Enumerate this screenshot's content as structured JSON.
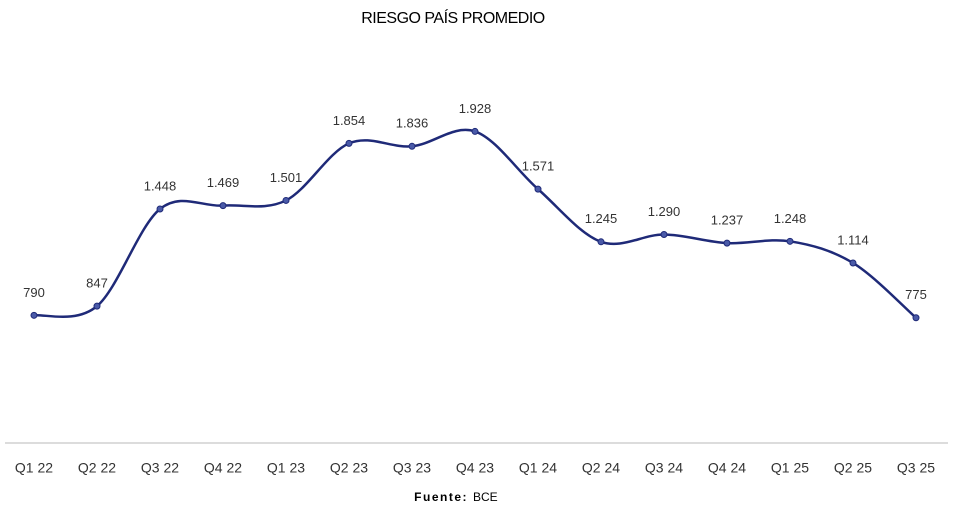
{
  "chart_data": {
    "type": "line",
    "title": "RIESGO PAÍS PROMEDIO",
    "categories": [
      "Q1 22",
      "Q2 22",
      "Q3 22",
      "Q4 22",
      "Q1 23",
      "Q2 23",
      "Q3 23",
      "Q4 23",
      "Q1 24",
      "Q2 24",
      "Q3 24",
      "Q4 24",
      "Q1 25",
      "Q2 25",
      "Q3 25"
    ],
    "values": [
      790,
      847,
      1448,
      1469,
      1501,
      1854,
      1836,
      1928,
      1571,
      1245,
      1290,
      1237,
      1248,
      1114,
      775
    ],
    "value_labels": [
      "790",
      "847",
      "1.448",
      "1.469",
      "1.501",
      "1.854",
      "1.836",
      "1.928",
      "1.571",
      "1.245",
      "1.290",
      "1.237",
      "1.248",
      "1.114",
      "775"
    ],
    "color": "#1f2a78",
    "ylim": [
      0,
      2500
    ],
    "source_label": "Fuente:",
    "source": "BCE"
  }
}
